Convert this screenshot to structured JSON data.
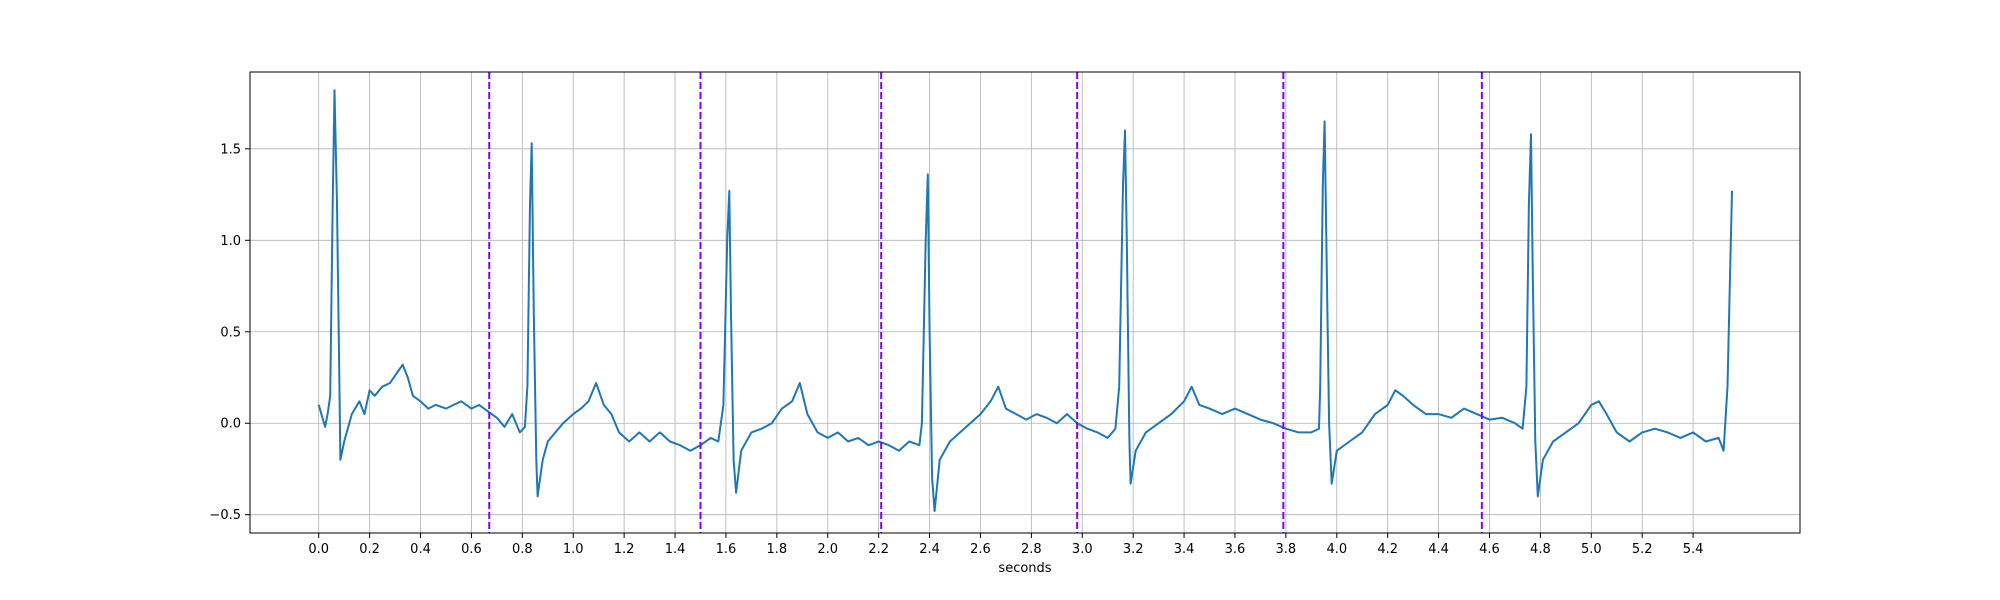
{
  "chart_data": {
    "type": "line",
    "title": "",
    "xlabel": "seconds",
    "ylabel": "",
    "xlim": [
      -0.27,
      5.82
    ],
    "ylim": [
      -0.6,
      1.92
    ],
    "x_ticks": [
      0.0,
      0.2,
      0.4,
      0.6,
      0.8,
      1.0,
      1.2,
      1.4,
      1.6,
      1.8,
      2.0,
      2.2,
      2.4,
      2.6,
      2.8,
      3.0,
      3.2,
      3.4,
      3.6,
      3.8,
      4.0,
      4.2,
      4.4,
      4.6,
      4.8,
      5.0,
      5.2,
      5.4
    ],
    "x_tick_labels": [
      "0.0",
      "0.2",
      "0.4",
      "0.6",
      "0.8",
      "1.0",
      "1.2",
      "1.4",
      "1.6",
      "1.8",
      "2.0",
      "2.2",
      "2.4",
      "2.6",
      "2.8",
      "3.0",
      "3.2",
      "3.4",
      "3.6",
      "3.8",
      "4.0",
      "4.2",
      "4.4",
      "4.6",
      "4.8",
      "5.0",
      "5.2",
      "5.4"
    ],
    "y_ticks": [
      -0.5,
      0.0,
      0.5,
      1.0,
      1.5
    ],
    "y_tick_labels": [
      "−0.5",
      "0.0",
      "0.5",
      "1.0",
      "1.5"
    ],
    "grid": true,
    "series": [
      {
        "line_color": "#1f77b4",
        "points": [
          [
            0.0,
            0.1
          ],
          [
            0.015,
            0.03
          ],
          [
            0.025,
            -0.02
          ],
          [
            0.035,
            0.05
          ],
          [
            0.045,
            0.15
          ],
          [
            0.055,
            1.2
          ],
          [
            0.062,
            1.82
          ],
          [
            0.072,
            1.2
          ],
          [
            0.085,
            -0.2
          ],
          [
            0.1,
            -0.1
          ],
          [
            0.13,
            0.05
          ],
          [
            0.16,
            0.12
          ],
          [
            0.18,
            0.05
          ],
          [
            0.2,
            0.18
          ],
          [
            0.22,
            0.15
          ],
          [
            0.25,
            0.2
          ],
          [
            0.28,
            0.22
          ],
          [
            0.31,
            0.28
          ],
          [
            0.33,
            0.32
          ],
          [
            0.35,
            0.25
          ],
          [
            0.37,
            0.15
          ],
          [
            0.4,
            0.12
          ],
          [
            0.43,
            0.08
          ],
          [
            0.46,
            0.1
          ],
          [
            0.5,
            0.08
          ],
          [
            0.53,
            0.1
          ],
          [
            0.56,
            0.12
          ],
          [
            0.6,
            0.08
          ],
          [
            0.63,
            0.1
          ],
          [
            0.67,
            0.06
          ],
          [
            0.7,
            0.03
          ],
          [
            0.73,
            -0.02
          ],
          [
            0.76,
            0.05
          ],
          [
            0.79,
            -0.05
          ],
          [
            0.81,
            -0.02
          ],
          [
            0.82,
            0.2
          ],
          [
            0.83,
            1.2
          ],
          [
            0.837,
            1.53
          ],
          [
            0.845,
            0.6
          ],
          [
            0.855,
            -0.2
          ],
          [
            0.86,
            -0.4
          ],
          [
            0.88,
            -0.2
          ],
          [
            0.9,
            -0.1
          ],
          [
            0.93,
            -0.05
          ],
          [
            0.96,
            0.0
          ],
          [
            1.0,
            0.05
          ],
          [
            1.03,
            0.08
          ],
          [
            1.06,
            0.12
          ],
          [
            1.09,
            0.22
          ],
          [
            1.12,
            0.1
          ],
          [
            1.15,
            0.05
          ],
          [
            1.18,
            -0.05
          ],
          [
            1.22,
            -0.1
          ],
          [
            1.26,
            -0.05
          ],
          [
            1.3,
            -0.1
          ],
          [
            1.34,
            -0.05
          ],
          [
            1.38,
            -0.1
          ],
          [
            1.42,
            -0.12
          ],
          [
            1.46,
            -0.15
          ],
          [
            1.5,
            -0.12
          ],
          [
            1.54,
            -0.08
          ],
          [
            1.57,
            -0.1
          ],
          [
            1.59,
            0.1
          ],
          [
            1.605,
            1.0
          ],
          [
            1.613,
            1.27
          ],
          [
            1.62,
            0.6
          ],
          [
            1.63,
            -0.2
          ],
          [
            1.64,
            -0.38
          ],
          [
            1.66,
            -0.15
          ],
          [
            1.7,
            -0.05
          ],
          [
            1.74,
            -0.03
          ],
          [
            1.78,
            0.0
          ],
          [
            1.82,
            0.08
          ],
          [
            1.86,
            0.12
          ],
          [
            1.89,
            0.22
          ],
          [
            1.92,
            0.05
          ],
          [
            1.96,
            -0.05
          ],
          [
            2.0,
            -0.08
          ],
          [
            2.04,
            -0.05
          ],
          [
            2.08,
            -0.1
          ],
          [
            2.12,
            -0.08
          ],
          [
            2.16,
            -0.12
          ],
          [
            2.2,
            -0.1
          ],
          [
            2.24,
            -0.12
          ],
          [
            2.28,
            -0.15
          ],
          [
            2.32,
            -0.1
          ],
          [
            2.36,
            -0.12
          ],
          [
            2.37,
            0.0
          ],
          [
            2.385,
            1.0
          ],
          [
            2.393,
            1.36
          ],
          [
            2.4,
            0.5
          ],
          [
            2.41,
            -0.3
          ],
          [
            2.42,
            -0.48
          ],
          [
            2.44,
            -0.2
          ],
          [
            2.48,
            -0.1
          ],
          [
            2.52,
            -0.05
          ],
          [
            2.56,
            0.0
          ],
          [
            2.6,
            0.05
          ],
          [
            2.64,
            0.12
          ],
          [
            2.67,
            0.2
          ],
          [
            2.7,
            0.08
          ],
          [
            2.74,
            0.05
          ],
          [
            2.78,
            0.02
          ],
          [
            2.82,
            0.05
          ],
          [
            2.86,
            0.03
          ],
          [
            2.9,
            0.0
          ],
          [
            2.94,
            0.05
          ],
          [
            2.98,
            0.0
          ],
          [
            3.02,
            -0.03
          ],
          [
            3.06,
            -0.05
          ],
          [
            3.1,
            -0.08
          ],
          [
            3.13,
            -0.03
          ],
          [
            3.145,
            0.2
          ],
          [
            3.16,
            1.3
          ],
          [
            3.168,
            1.6
          ],
          [
            3.175,
            1.0
          ],
          [
            3.185,
            -0.1
          ],
          [
            3.19,
            -0.33
          ],
          [
            3.21,
            -0.15
          ],
          [
            3.25,
            -0.05
          ],
          [
            3.3,
            0.0
          ],
          [
            3.35,
            0.05
          ],
          [
            3.4,
            0.12
          ],
          [
            3.43,
            0.2
          ],
          [
            3.46,
            0.1
          ],
          [
            3.5,
            0.08
          ],
          [
            3.55,
            0.05
          ],
          [
            3.6,
            0.08
          ],
          [
            3.65,
            0.05
          ],
          [
            3.7,
            0.02
          ],
          [
            3.75,
            0.0
          ],
          [
            3.8,
            -0.03
          ],
          [
            3.85,
            -0.05
          ],
          [
            3.9,
            -0.05
          ],
          [
            3.93,
            -0.03
          ],
          [
            3.935,
            0.2
          ],
          [
            3.945,
            1.3
          ],
          [
            3.952,
            1.65
          ],
          [
            3.96,
            0.9
          ],
          [
            3.97,
            0.0
          ],
          [
            3.98,
            -0.33
          ],
          [
            4.0,
            -0.15
          ],
          [
            4.05,
            -0.1
          ],
          [
            4.1,
            -0.05
          ],
          [
            4.15,
            0.05
          ],
          [
            4.2,
            0.1
          ],
          [
            4.23,
            0.18
          ],
          [
            4.26,
            0.15
          ],
          [
            4.3,
            0.1
          ],
          [
            4.35,
            0.05
          ],
          [
            4.4,
            0.05
          ],
          [
            4.45,
            0.03
          ],
          [
            4.5,
            0.08
          ],
          [
            4.55,
            0.05
          ],
          [
            4.6,
            0.02
          ],
          [
            4.65,
            0.03
          ],
          [
            4.7,
            0.0
          ],
          [
            4.73,
            -0.03
          ],
          [
            4.745,
            0.2
          ],
          [
            4.755,
            1.2
          ],
          [
            4.763,
            1.58
          ],
          [
            4.77,
            0.8
          ],
          [
            4.78,
            -0.1
          ],
          [
            4.79,
            -0.4
          ],
          [
            4.81,
            -0.2
          ],
          [
            4.85,
            -0.1
          ],
          [
            4.9,
            -0.05
          ],
          [
            4.95,
            0.0
          ],
          [
            5.0,
            0.1
          ],
          [
            5.03,
            0.12
          ],
          [
            5.06,
            0.05
          ],
          [
            5.1,
            -0.05
          ],
          [
            5.15,
            -0.1
          ],
          [
            5.2,
            -0.05
          ],
          [
            5.25,
            -0.03
          ],
          [
            5.3,
            -0.05
          ],
          [
            5.35,
            -0.08
          ],
          [
            5.4,
            -0.05
          ],
          [
            5.45,
            -0.1
          ],
          [
            5.5,
            -0.08
          ],
          [
            5.52,
            -0.15
          ],
          [
            5.535,
            0.2
          ],
          [
            5.545,
            0.8
          ],
          [
            5.553,
            1.27
          ]
        ]
      }
    ],
    "markers": {
      "style": "dashed",
      "color": "#7f00ff",
      "x": [
        0.67,
        1.5,
        2.21,
        2.98,
        3.79,
        4.57
      ]
    }
  }
}
